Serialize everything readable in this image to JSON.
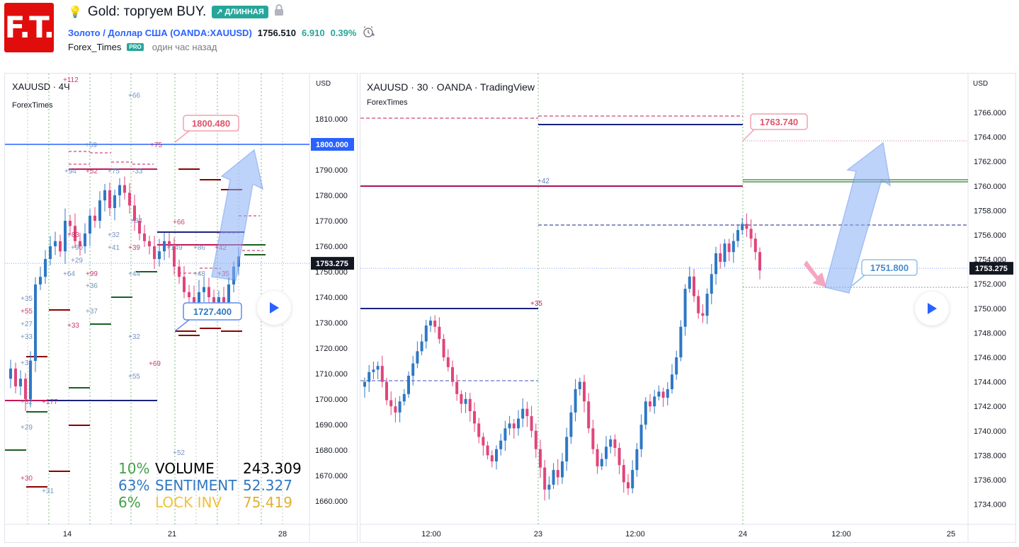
{
  "header": {
    "logo_text": "F.T.",
    "title": "Gold: торгуем BUY.",
    "badge": "↗ ДЛИННАЯ",
    "symbol_text": "Золото / Доллар США (OANDA:XAUUSD)",
    "price": "1756.510",
    "change": "6.910",
    "change_pct": "0.39%",
    "author": "Forex_Times",
    "author_badge": "PRO",
    "time_ago": "один час назад",
    "colors": {
      "brand": "#e10d0d",
      "accent": "#2962ff",
      "positive": "#26a69a"
    }
  },
  "left_chart": {
    "label": "XAUUSD · 4Ч",
    "sublabel": "ForexTimes",
    "currency": "USD",
    "y_ticks": [
      "1810.000",
      "1800.000",
      "1790.000",
      "1780.000",
      "1770.000",
      "1760.000",
      "1750.000",
      "1740.000",
      "1730.000",
      "1720.000",
      "1710.000",
      "1700.000",
      "1690.000",
      "1680.000",
      "1670.000",
      "1660.000"
    ],
    "x_ticks": [
      "14",
      "21",
      "28"
    ],
    "hl_price": "1800.000",
    "last_price": "1753.275",
    "callout_high": "1800.480",
    "callout_low": "1727.400",
    "stats": [
      {
        "pct": "10%",
        "name": "VOLUME",
        "value": "243.309"
      },
      {
        "pct": "63%",
        "name": "SENTIMENT",
        "value": "52.327"
      },
      {
        "pct": "6%",
        "name": "LOCK INV",
        "value": "75.419"
      }
    ],
    "annotations": [
      "+112",
      "+66",
      "+59",
      "+75",
      "+59",
      "+94",
      "+52",
      "+75",
      "-33",
      "+83",
      "+32",
      "+34",
      "+66",
      "+90",
      "+41",
      "+39",
      "+149",
      "+86",
      "+42",
      "+29",
      "+64",
      "+99",
      "+44",
      "+48",
      "+35",
      "+36",
      "+35",
      "+55",
      "+37",
      "+27",
      "+33",
      "+33",
      "+32",
      "+69",
      "+55",
      "+32",
      "+177",
      "+29",
      "+52",
      "+30",
      "+31",
      "+38"
    ]
  },
  "right_chart": {
    "label": "XAUUSD · 30 · OANDA · TradingView",
    "sublabel": "ForexTimes",
    "currency": "USD",
    "y_ticks": [
      "1766.000",
      "1764.000",
      "1762.000",
      "1760.000",
      "1758.000",
      "1756.000",
      "1754.000",
      "1752.000",
      "1750.000",
      "1748.000",
      "1746.000",
      "1744.000",
      "1742.000",
      "1740.000",
      "1738.000",
      "1736.000",
      "1734.000"
    ],
    "x_ticks": [
      "12:00",
      "23",
      "12:00",
      "24",
      "12:00",
      "25"
    ],
    "last_price": "1753.275",
    "callout_high": "1763.740",
    "callout_low": "1751.800",
    "annotations": [
      "+42",
      "+35"
    ]
  }
}
